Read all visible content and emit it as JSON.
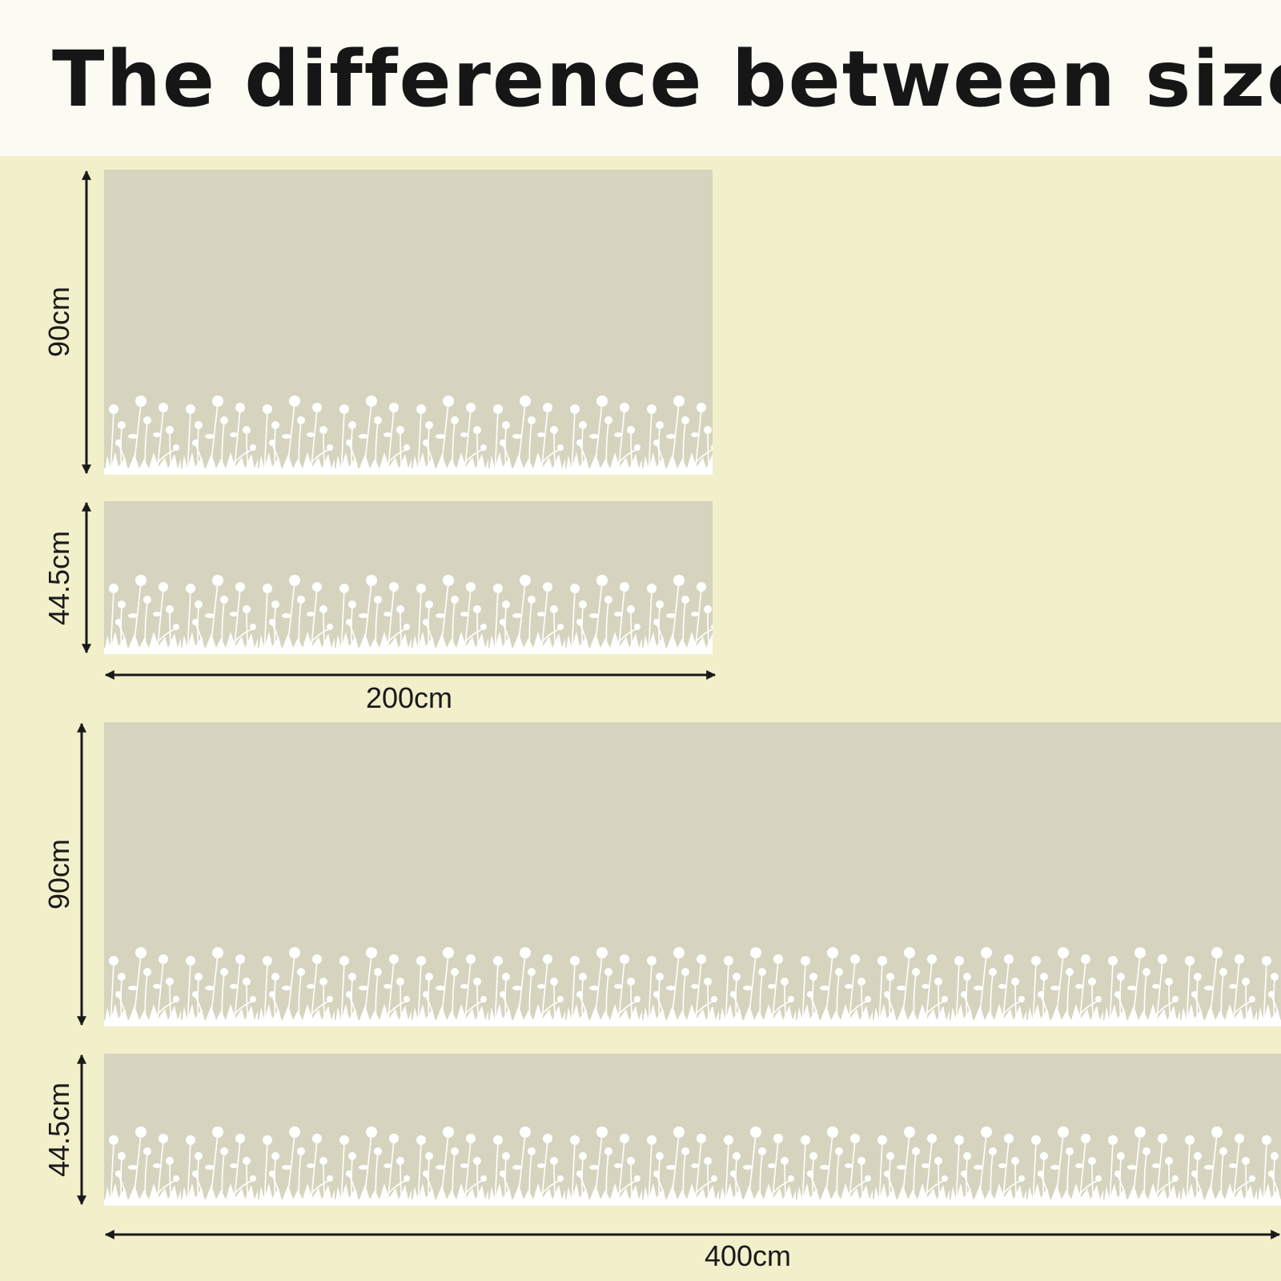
{
  "title": "The difference between sizes",
  "sizes": [
    {
      "width_label": "200cm",
      "heights": [
        "90cm",
        "44.5cm"
      ]
    },
    {
      "width_label": "400cm",
      "heights": [
        "90cm",
        "44.5cm"
      ]
    }
  ]
}
